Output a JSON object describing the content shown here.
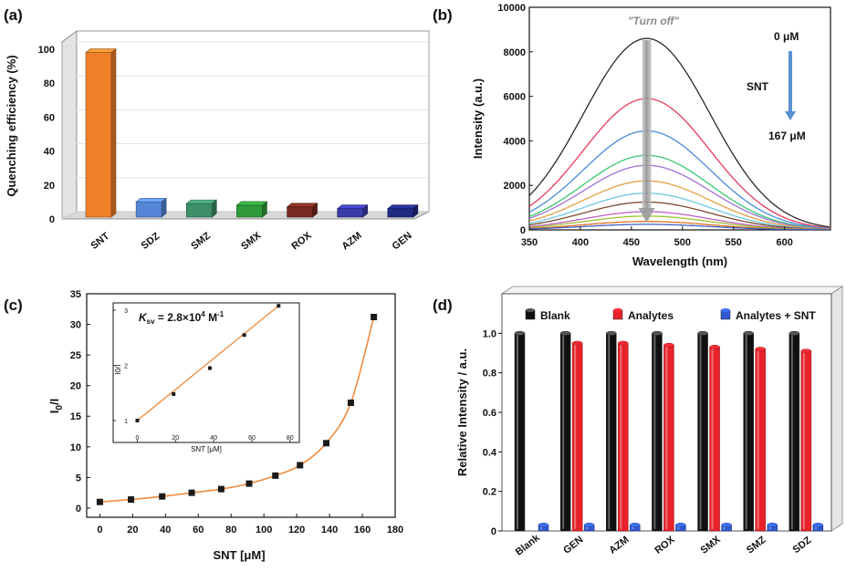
{
  "colors": {
    "snt_bar": "#f07f2a",
    "bar_a": [
      "#f07f2a",
      "#5586d8",
      "#3d8f68",
      "#2e9a3a",
      "#7a2a20",
      "#3a3aa8",
      "#1f2a80"
    ],
    "fit_line": "#ef8a3d",
    "blank": "#101010",
    "analytes": "#e8222a",
    "analytes_snt": "#3058d0",
    "spectra": [
      "#2a2a2a",
      "#e83a5a",
      "#4a8ad8",
      "#3ac870",
      "#a070d0",
      "#e0a040",
      "#70c8e0",
      "#7a4a30",
      "#c060c0",
      "#a0c030",
      "#e07020",
      "#4060c0"
    ],
    "arrow": "#5a90d0"
  },
  "chart_data": [
    {
      "panel": "(a)",
      "type": "bar",
      "categories": [
        "SNT",
        "SDZ",
        "SMZ",
        "SMX",
        "ROX",
        "AZM",
        "GEN"
      ],
      "values": [
        97,
        9,
        8,
        7,
        6,
        5,
        5
      ],
      "ylabel": "Quenching efficiency (%)",
      "ylim": [
        0,
        100
      ],
      "yticks": [
        "0",
        "20",
        "40",
        "60",
        "80",
        "100"
      ]
    },
    {
      "panel": "(b)",
      "type": "line",
      "xlabel": "Wavelength (nm)",
      "ylabel": "Intensity (a.u.)",
      "xlim": [
        350,
        645
      ],
      "ylim": [
        0,
        10000
      ],
      "xticks": [
        "350",
        "400",
        "450",
        "500",
        "550",
        "600"
      ],
      "yticks": [
        "0",
        "2000",
        "4000",
        "6000",
        "8000",
        "10000"
      ],
      "peak_wavelength": 465,
      "width_sigma": 62,
      "series_peaks": [
        8600,
        5900,
        4450,
        3350,
        2900,
        2200,
        1650,
        1250,
        820,
        620,
        380,
        250
      ],
      "annotations": {
        "turn_off": "\"Turn off\"",
        "start": "0 μM",
        "quencher": "SNT",
        "end": "167 μM"
      }
    },
    {
      "panel": "(c)",
      "type": "scatter",
      "xlabel": "SNT [μM]",
      "ylabel": "I",
      "ylabel_sub": "0",
      "ylabel_tail": "/I",
      "xlim": [
        -8,
        180
      ],
      "ylim": [
        -1.5,
        35
      ],
      "xticks": [
        "0",
        "20",
        "40",
        "60",
        "80",
        "100",
        "120",
        "140",
        "160",
        "180"
      ],
      "yticks": [
        "0",
        "5",
        "10",
        "15",
        "20",
        "25",
        "30",
        "35"
      ],
      "x": [
        0,
        19,
        38,
        56,
        74,
        91,
        107,
        122,
        138,
        153,
        167
      ],
      "y": [
        1.0,
        1.4,
        1.9,
        2.5,
        3.1,
        4.0,
        5.3,
        7.0,
        10.6,
        17.2,
        31.2
      ],
      "inset": {
        "xlabel": "SNT [μM]",
        "ylabel": "I0/I",
        "xlim": [
          -5,
          82
        ],
        "ylim": [
          0.85,
          3.1
        ],
        "xticks": [
          "0",
          "20",
          "40",
          "60",
          "80"
        ],
        "yticks": [
          "1",
          "2",
          "3"
        ],
        "x": [
          0,
          19,
          38,
          56,
          74
        ],
        "y": [
          1.0,
          1.48,
          1.95,
          2.55,
          3.08
        ],
        "ksv_label": "K",
        "ksv_sub": "sv",
        "ksv_value": " = 2.8×10",
        "ksv_exp": "4",
        "ksv_unit": " M",
        "ksv_unit_exp": "-1"
      }
    },
    {
      "panel": "(d)",
      "type": "bar",
      "categories": [
        "Blank",
        "GEN",
        "AZM",
        "ROX",
        "SMX",
        "SMZ",
        "SDZ"
      ],
      "series": [
        {
          "name": "Blank",
          "values": [
            1.0,
            1.0,
            1.0,
            1.0,
            1.0,
            1.0,
            1.0
          ]
        },
        {
          "name": "Analytes",
          "values": [
            null,
            0.95,
            0.95,
            0.94,
            0.93,
            0.92,
            0.91
          ]
        },
        {
          "name": "Analytes + SNT",
          "values": [
            0.03,
            0.03,
            0.03,
            0.03,
            0.03,
            0.03,
            0.03
          ]
        }
      ],
      "ylabel": "Relative Intensity / a.u.",
      "ylim": [
        0,
        1.2
      ],
      "yticks": [
        "0",
        "0.2",
        "0.4",
        "0.6",
        "0.8",
        "1.0"
      ],
      "legend_position": "top"
    }
  ]
}
